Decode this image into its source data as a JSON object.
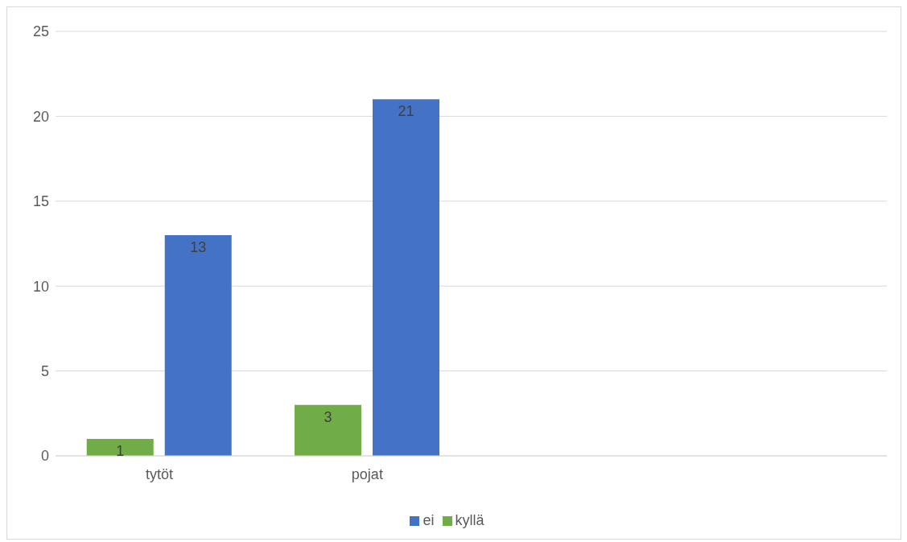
{
  "chart_data": {
    "type": "bar",
    "categories": [
      "tytöt",
      "pojat",
      null,
      null
    ],
    "series": [
      {
        "name": "kyllä",
        "color": "#70ad47",
        "values": [
          1,
          3,
          null,
          null
        ]
      },
      {
        "name": "ei",
        "color": "#4472c4",
        "values": [
          13,
          21,
          null,
          null
        ]
      }
    ],
    "ylim": [
      0,
      25
    ],
    "yticks": [
      0,
      5,
      10,
      15,
      20,
      25
    ],
    "grid": "y",
    "legend": "bottom",
    "data_labels": true
  }
}
